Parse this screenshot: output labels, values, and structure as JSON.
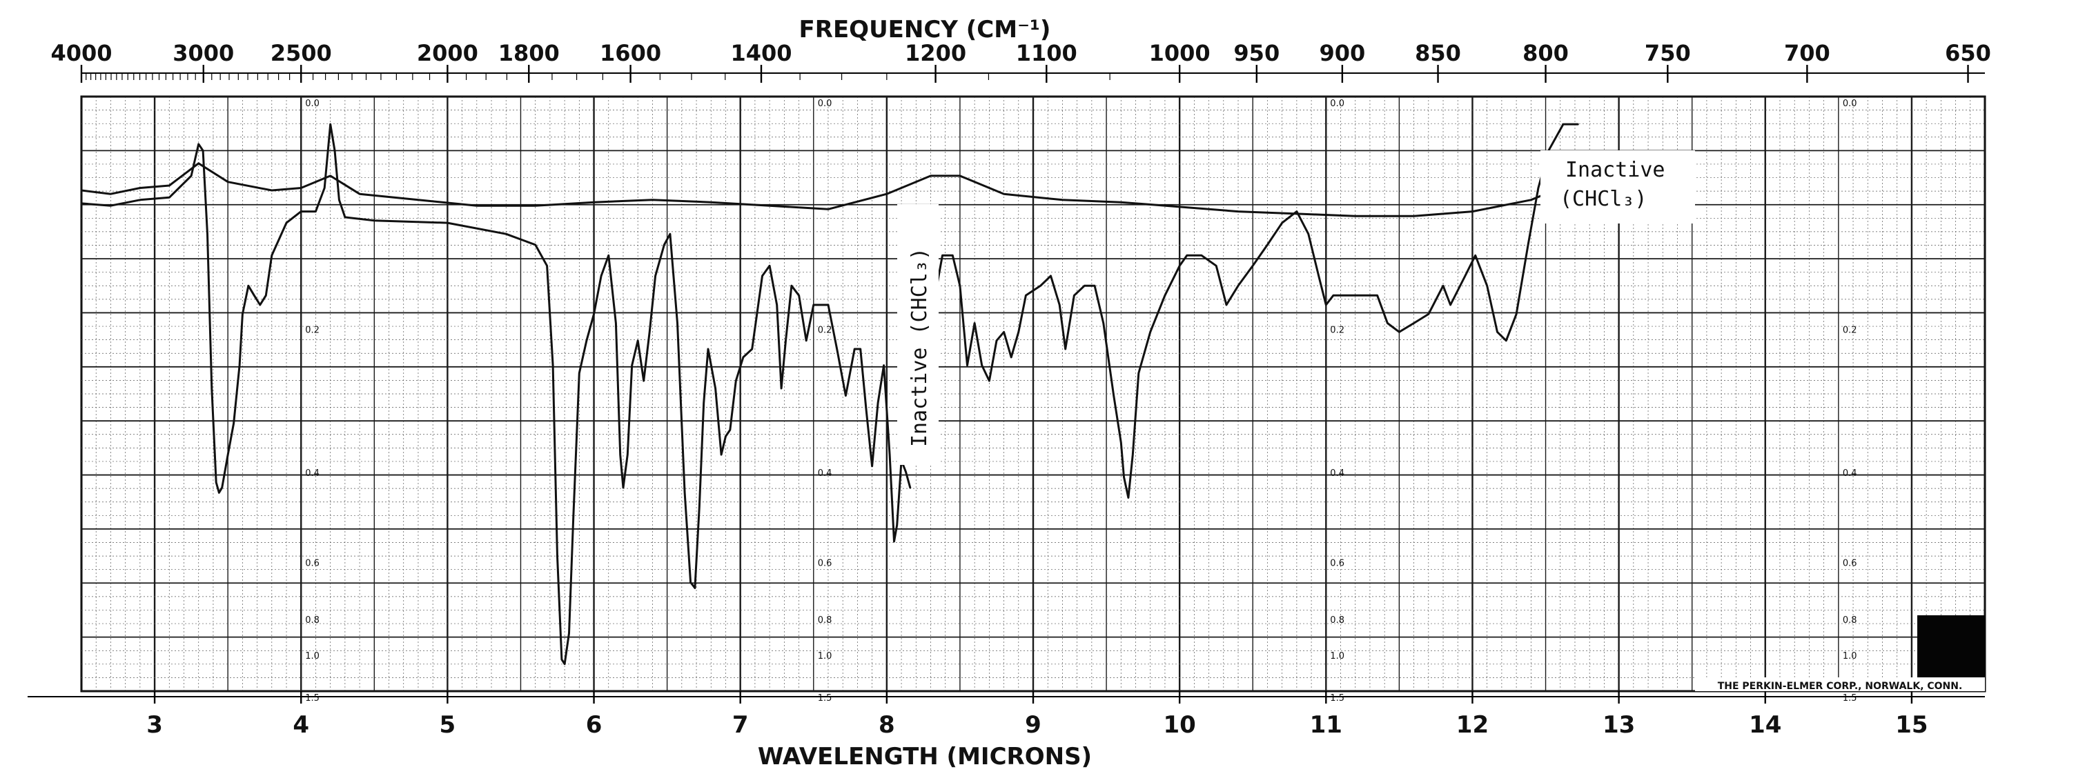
{
  "chart_data": {
    "type": "line",
    "title": "FREQUENCY (CM⁻¹)",
    "xlabel": "WAVELENGTH (MICRONS)",
    "ylabel": "",
    "x_unit": "microns",
    "xlim": [
      2.5,
      15.5
    ],
    "ylim": [
      0.0,
      1.5
    ],
    "y_quantity": "absorbance",
    "grid": true,
    "colors": {
      "paper": "#ffffff",
      "grid_major": "#1a1a1a",
      "grid_minor": "#555555",
      "trace": "#111111",
      "frame": "#000000"
    },
    "x_ticks": [
      "3",
      "4",
      "5",
      "6",
      "7",
      "8",
      "9",
      "10",
      "11",
      "12",
      "13",
      "14",
      "15"
    ],
    "x_tick_values": [
      3,
      4,
      5,
      6,
      7,
      8,
      9,
      10,
      11,
      12,
      13,
      14,
      15
    ],
    "freq_ticks": [
      {
        "label": "4000",
        "cm": 4000
      },
      {
        "label": "3000",
        "cm": 3000
      },
      {
        "label": "2500",
        "cm": 2500
      },
      {
        "label": "2000",
        "cm": 2000
      },
      {
        "label": "1800",
        "cm": 1800
      },
      {
        "label": "1600",
        "cm": 1600
      },
      {
        "label": "1400",
        "cm": 1400
      },
      {
        "label": "1200",
        "cm": 1200
      },
      {
        "label": "1100",
        "cm": 1100
      },
      {
        "label": "1000",
        "cm": 1000
      },
      {
        "label": "950",
        "cm": 950
      },
      {
        "label": "900",
        "cm": 900
      },
      {
        "label": "850",
        "cm": 850
      },
      {
        "label": "800",
        "cm": 800
      },
      {
        "label": "750",
        "cm": 750
      },
      {
        "label": "700",
        "cm": 700
      },
      {
        "label": "650",
        "cm": 650
      }
    ],
    "abs_ticks": [
      {
        "label": "0.0",
        "value": 0.0
      },
      {
        "label": "0.2",
        "value": 0.2
      },
      {
        "label": "0.4",
        "value": 0.4
      },
      {
        "label": "0.6",
        "value": 0.6
      },
      {
        "label": "0.8",
        "value": 0.8
      },
      {
        "label": "1.0",
        "value": 1.0
      },
      {
        "label": "1.5",
        "value": 1.5
      }
    ],
    "abs_label_columns": [
      4.0,
      7.5,
      11.0,
      14.5
    ],
    "series": [
      {
        "name": "",
        "points": [
          [
            2.5,
            0.083
          ],
          [
            2.7,
            0.085
          ],
          [
            2.9,
            0.08
          ],
          [
            3.1,
            0.078
          ],
          [
            3.25,
            0.06
          ],
          [
            3.3,
            0.035
          ],
          [
            3.33,
            0.04
          ],
          [
            3.36,
            0.11
          ],
          [
            3.39,
            0.28
          ],
          [
            3.42,
            0.43
          ],
          [
            3.44,
            0.45
          ],
          [
            3.46,
            0.44
          ],
          [
            3.5,
            0.38
          ],
          [
            3.54,
            0.33
          ],
          [
            3.58,
            0.25
          ],
          [
            3.6,
            0.19
          ],
          [
            3.64,
            0.16
          ],
          [
            3.68,
            0.17
          ],
          [
            3.72,
            0.18
          ],
          [
            3.76,
            0.17
          ],
          [
            3.8,
            0.13
          ],
          [
            3.9,
            0.1
          ],
          [
            4.0,
            0.09
          ],
          [
            4.1,
            0.09
          ],
          [
            4.16,
            0.07
          ],
          [
            4.2,
            0.02
          ],
          [
            4.23,
            0.04
          ],
          [
            4.26,
            0.08
          ],
          [
            4.3,
            0.095
          ],
          [
            4.5,
            0.098
          ],
          [
            5.0,
            0.1
          ],
          [
            5.4,
            0.11
          ],
          [
            5.6,
            0.12
          ],
          [
            5.68,
            0.14
          ],
          [
            5.72,
            0.25
          ],
          [
            5.75,
            0.6
          ],
          [
            5.78,
            1.08
          ],
          [
            5.8,
            1.12
          ],
          [
            5.83,
            0.9
          ],
          [
            5.86,
            0.5
          ],
          [
            5.9,
            0.26
          ],
          [
            5.95,
            0.22
          ],
          [
            6.0,
            0.19
          ],
          [
            6.05,
            0.15
          ],
          [
            6.1,
            0.13
          ],
          [
            6.15,
            0.2
          ],
          [
            6.18,
            0.38
          ],
          [
            6.2,
            0.44
          ],
          [
            6.23,
            0.38
          ],
          [
            6.26,
            0.25
          ],
          [
            6.3,
            0.22
          ],
          [
            6.34,
            0.27
          ],
          [
            6.38,
            0.21
          ],
          [
            6.42,
            0.15
          ],
          [
            6.48,
            0.12
          ],
          [
            6.52,
            0.11
          ],
          [
            6.57,
            0.2
          ],
          [
            6.62,
            0.45
          ],
          [
            6.66,
            0.68
          ],
          [
            6.69,
            0.7
          ],
          [
            6.72,
            0.48
          ],
          [
            6.75,
            0.3
          ],
          [
            6.78,
            0.23
          ],
          [
            6.83,
            0.28
          ],
          [
            6.87,
            0.38
          ],
          [
            6.9,
            0.35
          ],
          [
            6.93,
            0.34
          ],
          [
            6.97,
            0.27
          ],
          [
            7.02,
            0.24
          ],
          [
            7.08,
            0.23
          ],
          [
            7.15,
            0.15
          ],
          [
            7.2,
            0.14
          ],
          [
            7.25,
            0.18
          ],
          [
            7.28,
            0.28
          ],
          [
            7.31,
            0.22
          ],
          [
            7.35,
            0.16
          ],
          [
            7.4,
            0.17
          ],
          [
            7.45,
            0.22
          ],
          [
            7.5,
            0.18
          ],
          [
            7.6,
            0.18
          ],
          [
            7.66,
            0.23
          ],
          [
            7.72,
            0.29
          ],
          [
            7.78,
            0.23
          ],
          [
            7.82,
            0.23
          ],
          [
            7.86,
            0.31
          ],
          [
            7.9,
            0.4
          ],
          [
            7.94,
            0.3
          ],
          [
            7.98,
            0.25
          ],
          [
            8.02,
            0.38
          ],
          [
            8.05,
            0.56
          ],
          [
            8.07,
            0.52
          ],
          [
            8.1,
            0.39
          ],
          [
            8.13,
            0.41
          ],
          [
            8.16,
            0.44
          ]
        ]
      },
      {
        "name": "",
        "points": [
          [
            8.3,
            0.2
          ],
          [
            8.33,
            0.17
          ],
          [
            8.38,
            0.13
          ],
          [
            8.45,
            0.13
          ],
          [
            8.5,
            0.16
          ],
          [
            8.55,
            0.25
          ],
          [
            8.6,
            0.2
          ],
          [
            8.65,
            0.25
          ],
          [
            8.7,
            0.27
          ],
          [
            8.75,
            0.22
          ],
          [
            8.8,
            0.21
          ],
          [
            8.85,
            0.24
          ],
          [
            8.9,
            0.21
          ],
          [
            8.95,
            0.17
          ],
          [
            9.05,
            0.16
          ],
          [
            9.12,
            0.15
          ],
          [
            9.18,
            0.18
          ],
          [
            9.22,
            0.23
          ],
          [
            9.28,
            0.17
          ],
          [
            9.35,
            0.16
          ],
          [
            9.42,
            0.16
          ],
          [
            9.48,
            0.2
          ],
          [
            9.55,
            0.29
          ],
          [
            9.6,
            0.36
          ],
          [
            9.62,
            0.42
          ],
          [
            9.65,
            0.46
          ],
          [
            9.68,
            0.38
          ],
          [
            9.72,
            0.26
          ],
          [
            9.8,
            0.21
          ],
          [
            9.9,
            0.17
          ],
          [
            10.0,
            0.14
          ],
          [
            10.05,
            0.13
          ],
          [
            10.15,
            0.13
          ],
          [
            10.25,
            0.14
          ],
          [
            10.32,
            0.18
          ],
          [
            10.4,
            0.16
          ],
          [
            10.5,
            0.14
          ],
          [
            10.6,
            0.12
          ],
          [
            10.7,
            0.1
          ],
          [
            10.8,
            0.09
          ],
          [
            10.88,
            0.11
          ],
          [
            10.95,
            0.15
          ],
          [
            11.0,
            0.18
          ],
          [
            11.05,
            0.17
          ],
          [
            11.2,
            0.17
          ],
          [
            11.35,
            0.17
          ],
          [
            11.42,
            0.2
          ],
          [
            11.5,
            0.21
          ],
          [
            11.6,
            0.2
          ],
          [
            11.7,
            0.19
          ],
          [
            11.8,
            0.16
          ],
          [
            11.85,
            0.18
          ],
          [
            11.95,
            0.15
          ],
          [
            12.02,
            0.13
          ],
          [
            12.1,
            0.16
          ],
          [
            12.17,
            0.21
          ],
          [
            12.23,
            0.22
          ],
          [
            12.3,
            0.19
          ],
          [
            12.38,
            0.12
          ],
          [
            12.45,
            0.07
          ],
          [
            12.52,
            0.04
          ],
          [
            12.62,
            0.02
          ],
          [
            12.72,
            0.02
          ]
        ]
      },
      {
        "name": "",
        "points": [
          [
            2.5,
            0.072
          ],
          [
            2.7,
            0.075
          ],
          [
            2.9,
            0.07
          ],
          [
            3.1,
            0.068
          ],
          [
            3.3,
            0.05
          ],
          [
            3.5,
            0.065
          ],
          [
            3.8,
            0.072
          ],
          [
            4.0,
            0.07
          ],
          [
            4.2,
            0.06
          ],
          [
            4.4,
            0.075
          ],
          [
            4.8,
            0.08
          ],
          [
            5.2,
            0.085
          ],
          [
            5.6,
            0.085
          ],
          [
            6.0,
            0.082
          ],
          [
            6.4,
            0.08
          ],
          [
            6.8,
            0.082
          ],
          [
            7.2,
            0.085
          ],
          [
            7.6,
            0.088
          ],
          [
            8.0,
            0.075
          ],
          [
            8.3,
            0.06
          ],
          [
            8.5,
            0.06
          ],
          [
            8.8,
            0.075
          ],
          [
            9.2,
            0.08
          ],
          [
            9.6,
            0.082
          ],
          [
            10.0,
            0.086
          ],
          [
            10.4,
            0.09
          ],
          [
            10.8,
            0.092
          ],
          [
            11.2,
            0.094
          ],
          [
            11.6,
            0.094
          ],
          [
            12.0,
            0.09
          ],
          [
            12.4,
            0.08
          ],
          [
            12.6,
            0.07
          ]
        ]
      }
    ],
    "annotations": [
      {
        "text": "Inactive",
        "sub": "(CHCl₃)",
        "x": 13.0,
        "y": 0.08,
        "orientation": "horizontal"
      },
      {
        "text": "Inactive (CHCl₃)",
        "sub": "",
        "x": 8.25,
        "y": 0.3,
        "orientation": "vertical"
      }
    ],
    "footer_text": "THE PERKIN-ELMER CORP., NORWALK, CONN."
  }
}
